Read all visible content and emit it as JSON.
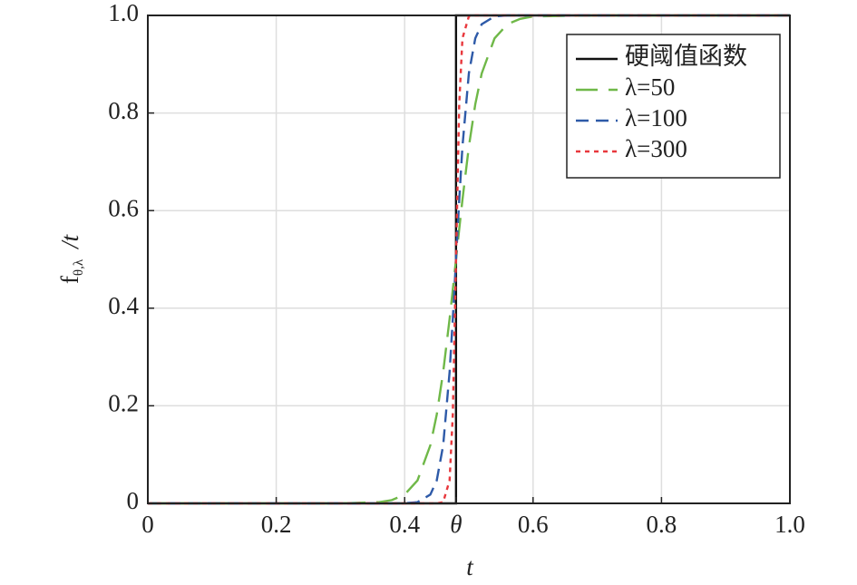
{
  "chart_data": {
    "type": "line",
    "xlabel": "t",
    "ylabel": "f",
    "ylabel_sub": "θ,λ",
    "ylabel_tail": "/t",
    "xlim": [
      0,
      1
    ],
    "ylim": [
      0,
      1
    ],
    "xticks": [
      0,
      0.2,
      0.4,
      {
        "value": 0.48,
        "label": "θ"
      },
      0.6,
      0.8,
      {
        "value": 1,
        "label": "1.0"
      }
    ],
    "yticks": [
      0,
      0.2,
      0.4,
      0.6,
      0.8,
      {
        "value": 1,
        "label": "1.0"
      }
    ],
    "grid": true,
    "legend": "upper right",
    "series": [
      {
        "name": "硬阈值函数",
        "color": "#111111",
        "style": "solid",
        "x": [
          0,
          0.48,
          0.48,
          1
        ],
        "values": [
          0,
          0,
          1,
          1
        ]
      },
      {
        "name": "λ=50",
        "color": "#6fb848",
        "style": "long-dash",
        "x": [
          0,
          0.1,
          0.2,
          0.3,
          0.36,
          0.38,
          0.4,
          0.42,
          0.44,
          0.45,
          0.46,
          0.47,
          0.475,
          0.48,
          0.485,
          0.49,
          0.5,
          0.51,
          0.52,
          0.54,
          0.56,
          0.58,
          0.6,
          0.7,
          0.8,
          0.9,
          1
        ],
        "values": [
          0,
          0,
          0,
          0,
          0.0025,
          0.0067,
          0.018,
          0.047,
          0.119,
          0.182,
          0.269,
          0.378,
          0.438,
          0.5,
          0.562,
          0.622,
          0.731,
          0.818,
          0.881,
          0.953,
          0.982,
          0.993,
          0.998,
          1,
          1,
          1,
          1
        ]
      },
      {
        "name": "λ=100",
        "color": "#2e5aa8",
        "style": "dash",
        "x": [
          0,
          0.1,
          0.2,
          0.3,
          0.36,
          0.38,
          0.4,
          0.42,
          0.44,
          0.45,
          0.46,
          0.47,
          0.475,
          0.48,
          0.485,
          0.49,
          0.5,
          0.51,
          0.52,
          0.54,
          0.56,
          0.58,
          0.6,
          0.7,
          0.8,
          0.9,
          1
        ],
        "values": [
          0,
          0,
          0,
          0,
          0,
          0,
          0.0003,
          0.0025,
          0.018,
          0.047,
          0.119,
          0.269,
          0.378,
          0.5,
          0.622,
          0.731,
          0.881,
          0.953,
          0.982,
          0.998,
          1,
          1,
          1,
          1,
          1,
          1,
          1
        ]
      },
      {
        "name": "λ=300",
        "color": "#e8383d",
        "style": "dot",
        "x": [
          0,
          0.1,
          0.2,
          0.3,
          0.36,
          0.38,
          0.4,
          0.42,
          0.44,
          0.45,
          0.46,
          0.47,
          0.475,
          0.48,
          0.485,
          0.49,
          0.5,
          0.51,
          0.52,
          0.54,
          0.56,
          0.58,
          0.6,
          0.7,
          0.8,
          0.9,
          1
        ],
        "values": [
          0,
          0,
          0,
          0,
          0,
          0,
          0,
          0,
          0,
          0.0001,
          0.0025,
          0.047,
          0.182,
          0.5,
          0.818,
          0.953,
          0.998,
          1,
          1,
          1,
          1,
          1,
          1,
          1,
          1,
          1,
          1
        ]
      }
    ]
  }
}
